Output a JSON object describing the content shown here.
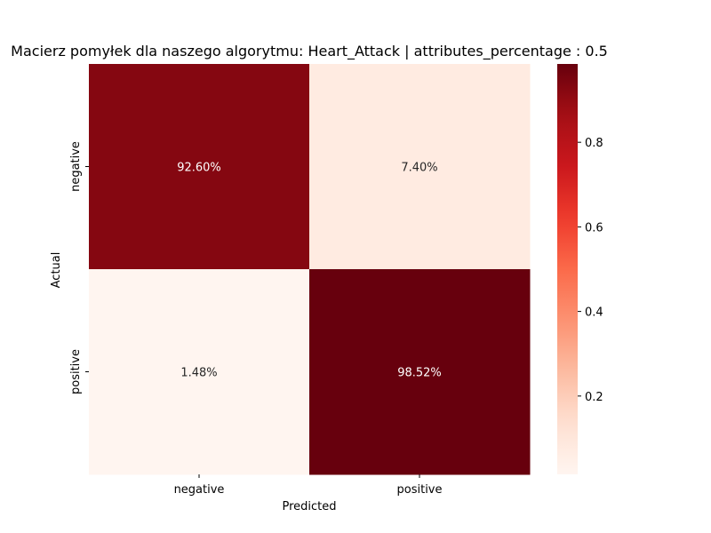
{
  "chart_data": {
    "type": "heatmap",
    "title": "Macierz pomyłek dla naszego algorytmu: Heart_Attack | attributes_percentage : 0.5",
    "xlabel": "Predicted",
    "ylabel": "Actual",
    "x_categories": [
      "negative",
      "positive"
    ],
    "y_categories": [
      "negative",
      "positive"
    ],
    "values": [
      [
        0.926,
        0.074
      ],
      [
        0.0148,
        0.9852
      ]
    ],
    "cell_labels": [
      [
        "92.60%",
        "7.40%"
      ],
      [
        "1.48%",
        "98.52%"
      ]
    ],
    "colormap": "Reds",
    "colorbar": {
      "range": [
        0.0148,
        0.9852
      ],
      "ticks": [
        0.2,
        0.4,
        0.6,
        0.8
      ],
      "tick_labels": [
        "0.2",
        "0.4",
        "0.6",
        "0.8"
      ]
    }
  }
}
